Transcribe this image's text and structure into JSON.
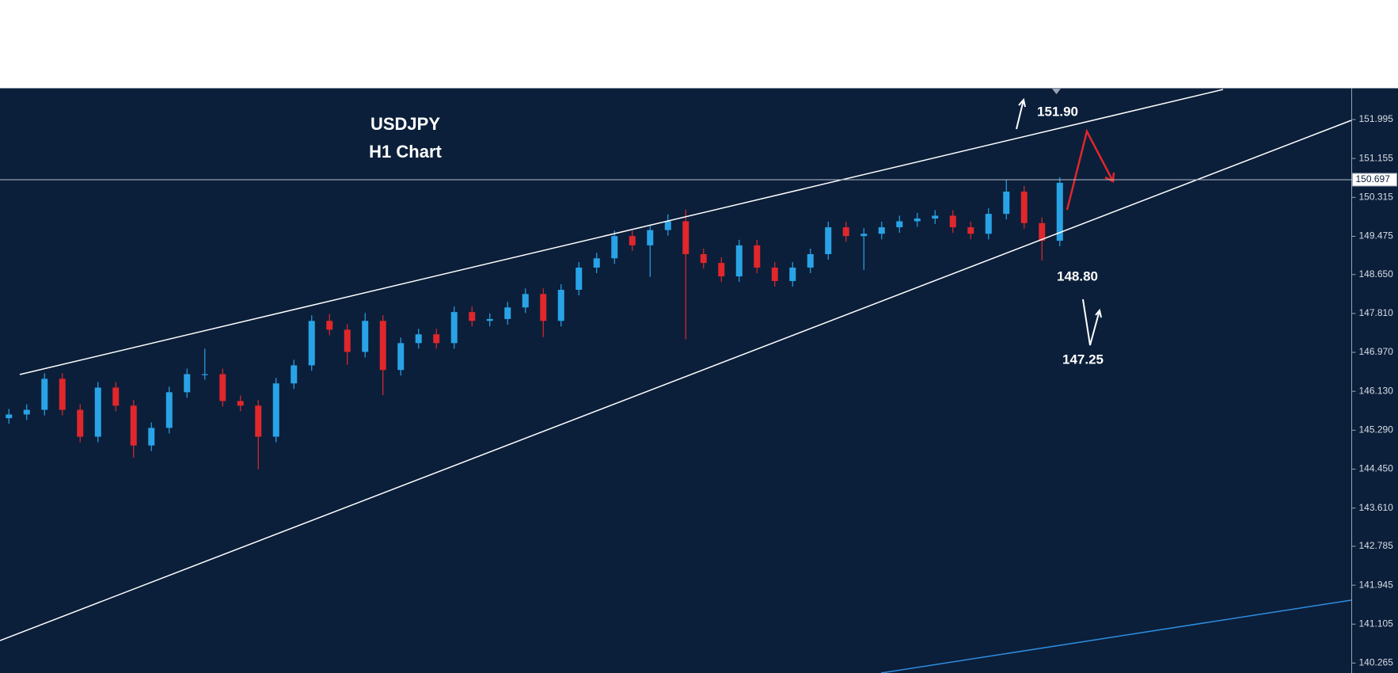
{
  "chart_data": {
    "type": "candlestick",
    "title": "USDJPY",
    "subtitle": "H1 Chart",
    "up_color": "#29a3e6",
    "down_color": "#e0272b",
    "ylim": [
      140.05,
      152.67
    ],
    "yticks": [
      151.995,
      151.155,
      150.315,
      149.475,
      {
        "value": 148.65,
        "label": "148.650"
      },
      {
        "value": 147.81,
        "label": "147.810"
      },
      {
        "value": 146.97,
        "label": "146.970"
      },
      {
        "value": 146.13,
        "label": "146.130"
      },
      {
        "value": 145.29,
        "label": "145.290"
      },
      {
        "value": 144.45,
        "label": "144.450"
      },
      {
        "value": 143.61,
        "label": "143.610"
      },
      142.785,
      141.945,
      141.105,
      140.265
    ],
    "current_price": 150.697,
    "annotations": [
      "151.90",
      "148.80",
      "147.25"
    ],
    "open": [
      145.55,
      145.63,
      145.73,
      146.4,
      145.73,
      145.15,
      146.21,
      145.82,
      144.96,
      145.34,
      146.11,
      146.5,
      146.5,
      145.92,
      145.82,
      145.15,
      146.3,
      146.69,
      147.65,
      147.46,
      146.98,
      147.65,
      146.59,
      147.17,
      147.36,
      147.17,
      147.84,
      147.65,
      147.69,
      147.94,
      148.23,
      147.65,
      148.32,
      148.8,
      149.0,
      149.48,
      149.28,
      149.61,
      149.8,
      149.09,
      148.9,
      148.61,
      149.28,
      148.8,
      148.51,
      148.8,
      149.09,
      149.67,
      149.48,
      149.53,
      149.67,
      149.8,
      149.86,
      149.92,
      149.67,
      149.53,
      149.96,
      150.44,
      149.76,
      149.38
    ],
    "high": [
      145.75,
      145.85,
      146.52,
      146.52,
      145.85,
      146.33,
      146.33,
      145.94,
      145.46,
      146.23,
      146.62,
      147.05,
      146.62,
      146.04,
      145.94,
      146.42,
      146.81,
      147.77,
      147.8,
      147.58,
      147.82,
      147.77,
      147.29,
      147.48,
      147.48,
      147.96,
      147.96,
      147.81,
      148.06,
      148.35,
      148.35,
      148.44,
      148.92,
      149.12,
      149.6,
      149.6,
      149.73,
      149.95,
      150.05,
      149.21,
      149.02,
      149.4,
      149.4,
      148.92,
      148.92,
      149.21,
      149.79,
      149.79,
      149.65,
      149.79,
      149.92,
      149.98,
      150.04,
      150.04,
      149.79,
      150.08,
      150.7,
      150.56,
      149.88,
      150.75
    ],
    "low": [
      145.43,
      145.51,
      145.61,
      145.61,
      145.03,
      145.03,
      145.7,
      144.7,
      144.84,
      145.22,
      145.99,
      146.38,
      145.8,
      145.7,
      144.45,
      145.03,
      146.18,
      146.57,
      147.34,
      146.7,
      146.86,
      146.05,
      146.47,
      147.05,
      147.05,
      147.05,
      147.53,
      147.53,
      147.57,
      147.82,
      147.3,
      147.53,
      148.2,
      148.68,
      148.88,
      149.16,
      148.6,
      149.49,
      147.25,
      148.78,
      148.49,
      148.49,
      148.68,
      148.39,
      148.39,
      148.68,
      148.97,
      149.36,
      148.75,
      149.41,
      149.55,
      149.68,
      149.74,
      149.55,
      149.41,
      149.41,
      149.84,
      149.64,
      148.95,
      149.26
    ],
    "close": [
      145.63,
      145.73,
      146.4,
      145.73,
      145.15,
      146.21,
      145.82,
      144.96,
      145.34,
      146.11,
      146.5,
      146.5,
      145.92,
      145.82,
      145.15,
      146.3,
      146.69,
      147.65,
      147.46,
      146.98,
      147.65,
      146.59,
      147.17,
      147.36,
      147.17,
      147.84,
      147.65,
      147.69,
      147.94,
      148.23,
      147.65,
      148.32,
      148.8,
      149.0,
      149.48,
      149.28,
      149.61,
      149.8,
      149.09,
      148.9,
      148.61,
      149.28,
      148.8,
      148.51,
      148.8,
      149.09,
      149.67,
      149.48,
      149.53,
      149.67,
      149.8,
      149.86,
      149.92,
      149.67,
      149.53,
      149.96,
      150.44,
      149.76,
      149.38,
      150.63
    ]
  }
}
